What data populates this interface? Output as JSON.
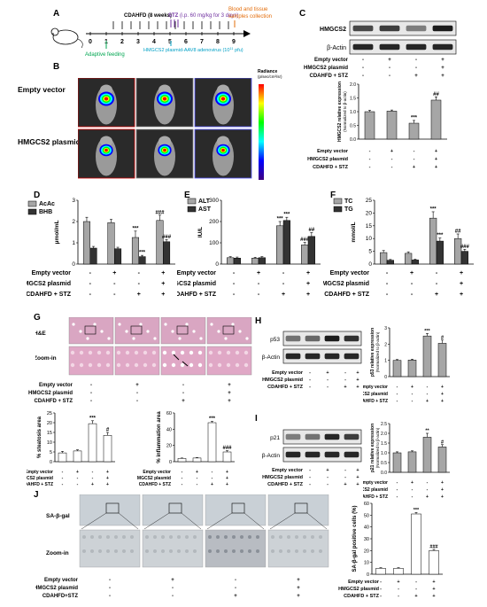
{
  "panels": {
    "A": "A",
    "B": "B",
    "C": "C",
    "D": "D",
    "E": "E",
    "F": "F",
    "G": "G",
    "H": "H",
    "I": "I",
    "J": "J"
  },
  "timeline": {
    "ticks": [
      "0",
      "1",
      "2",
      "3",
      "4",
      "5",
      "6",
      "7",
      "8",
      "9"
    ],
    "cdahfd": "CDAHFD (8 weeks)",
    "stz": "STZ",
    "stz_dose": "(i.p. 60 mg/kg for 3 days)",
    "blood_1": "Blood and tissue",
    "blood_2": "samples collection",
    "adaptive": "Adaptive feeding",
    "aav": "HMGCS2 plasmid-AAV8 adenovirus (10",
    "aav_exp": "11",
    "aav_unit": " pfu)"
  },
  "imaging": {
    "row1": "Empty vector",
    "row2": "HMGCS2 plasmid",
    "cb_title": "Radiance",
    "cb_unit": "(p/sec/cm²/sr)"
  },
  "conditions": {
    "ev": "Empty vector",
    "hp": "HMGCS2 plasmid",
    "cd": "CDAHFD + STZ",
    "cd_j": "CDAHFD+STZ",
    "ev_signs": [
      "-",
      "+",
      "-",
      "+"
    ],
    "hp_signs": [
      "-",
      "-",
      "-",
      "+"
    ],
    "cd_signs": [
      "-",
      "-",
      "+",
      "+"
    ]
  },
  "blots": {
    "hmgcs2": "HMGCS2",
    "actin": "β-Actin",
    "p53": "p53",
    "p21": "p21"
  },
  "histo": {
    "he": "H&E",
    "zoom": "Zoom-in",
    "sa": "SA-β-gal"
  },
  "sig": {
    "t3": "***",
    "t2": "**",
    "h1": "#",
    "h2": "##",
    "h3": "###"
  },
  "chart_data": [
    {
      "panel": "C",
      "type": "bar",
      "ylabel": "HMGCS2 relative expression",
      "ylabel2": "(Normalized to β-actin)",
      "ylim": [
        0,
        2.0
      ],
      "yticks": [
        "0.0",
        "0.5",
        "1.0",
        "1.5",
        "2.0"
      ],
      "ytick_values": [
        0,
        0.5,
        1.0,
        1.5,
        2.0
      ],
      "values": [
        1.0,
        1.02,
        0.58,
        1.42
      ],
      "errors": [
        0.05,
        0.04,
        0.1,
        0.12
      ],
      "marks": [
        "",
        "",
        "***",
        "##"
      ]
    },
    {
      "panel": "D",
      "type": "bar",
      "ylabel": "μmol/mL",
      "ylim": [
        0,
        3
      ],
      "yticks": [
        "0",
        "1",
        "2",
        "3"
      ],
      "ytick_values": [
        0,
        1,
        2,
        3
      ],
      "series": [
        {
          "name": "AcAc",
          "values": [
            2.0,
            1.95,
            1.25,
            2.05
          ],
          "errors": [
            0.2,
            0.15,
            0.3,
            0.25
          ],
          "marks": [
            "",
            "",
            "***",
            "###"
          ]
        },
        {
          "name": "BHB",
          "values": [
            0.75,
            0.72,
            0.35,
            1.05
          ],
          "errors": [
            0.08,
            0.07,
            0.06,
            0.1
          ],
          "marks": [
            "",
            "",
            "***",
            "###"
          ]
        }
      ]
    },
    {
      "panel": "E",
      "type": "bar",
      "ylabel": "IU/L",
      "ylim": [
        0,
        300
      ],
      "yticks": [
        "0",
        "100",
        "200",
        "300"
      ],
      "ytick_values": [
        0,
        100,
        200,
        300
      ],
      "series": [
        {
          "name": "ALT",
          "values": [
            30,
            28,
            180,
            90
          ],
          "errors": [
            5,
            4,
            20,
            12
          ],
          "marks": [
            "",
            "",
            "***",
            "###"
          ]
        },
        {
          "name": "AST",
          "values": [
            28,
            30,
            205,
            130
          ],
          "errors": [
            5,
            5,
            15,
            18
          ],
          "marks": [
            "",
            "",
            "***",
            "##"
          ]
        }
      ]
    },
    {
      "panel": "F",
      "type": "bar",
      "ylabel": "mmol/L",
      "ylim": [
        0,
        25
      ],
      "yticks": [
        "0",
        "5",
        "10",
        "15",
        "20",
        "25"
      ],
      "ytick_values": [
        0,
        5,
        10,
        15,
        20,
        25
      ],
      "series": [
        {
          "name": "TC",
          "values": [
            4.5,
            4.2,
            18,
            10
          ],
          "errors": [
            0.8,
            0.6,
            2.5,
            1.8
          ],
          "marks": [
            "",
            "",
            "***",
            "##"
          ]
        },
        {
          "name": "TG",
          "values": [
            1.5,
            1.6,
            9,
            5
          ],
          "errors": [
            0.3,
            0.3,
            1.2,
            0.8
          ],
          "marks": [
            "",
            "",
            "***",
            "###"
          ]
        }
      ]
    },
    {
      "panel": "G1",
      "type": "bar",
      "ylabel": "% steatosis area",
      "ylim": [
        0,
        25
      ],
      "yticks": [
        "0",
        "5",
        "10",
        "15",
        "20",
        "25"
      ],
      "ytick_values": [
        0,
        5,
        10,
        15,
        20,
        25
      ],
      "values": [
        4.5,
        5.5,
        19.5,
        13.5
      ],
      "errors": [
        0.8,
        0.6,
        1.5,
        1.5
      ],
      "marks": [
        "",
        "",
        "***",
        "#"
      ]
    },
    {
      "panel": "G2",
      "type": "bar",
      "ylabel": "% inflammation area",
      "ylim": [
        0,
        60
      ],
      "yticks": [
        "0",
        "20",
        "40",
        "60"
      ],
      "ytick_values": [
        0,
        20,
        40,
        60
      ],
      "values": [
        4,
        4.5,
        48,
        12
      ],
      "errors": [
        0.5,
        0.5,
        1.5,
        1.5
      ],
      "marks": [
        "",
        "",
        "***",
        "###"
      ]
    },
    {
      "panel": "H",
      "type": "bar",
      "ylabel": "p53 relative expression",
      "ylabel2": "(Normalized to β-actin)",
      "ylim": [
        0,
        3
      ],
      "yticks": [
        "0",
        "1",
        "2",
        "3"
      ],
      "ytick_values": [
        0,
        1,
        2,
        3
      ],
      "values": [
        1.0,
        1.02,
        2.5,
        2.05
      ],
      "errors": [
        0.05,
        0.05,
        0.15,
        0.2
      ],
      "marks": [
        "",
        "",
        "***",
        "#"
      ]
    },
    {
      "panel": "I",
      "type": "bar",
      "ylabel": "p21 relative expression",
      "ylabel2": "(Normalized to β-actin)",
      "ylim": [
        0,
        2.5
      ],
      "yticks": [
        "0.0",
        "0.5",
        "1.0",
        "1.5",
        "2.0",
        "2.5"
      ],
      "ytick_values": [
        0,
        0.5,
        1.0,
        1.5,
        2.0,
        2.5
      ],
      "values": [
        1.0,
        1.05,
        1.8,
        1.3
      ],
      "errors": [
        0.05,
        0.05,
        0.2,
        0.12
      ],
      "marks": [
        "",
        "",
        "**",
        "#"
      ]
    },
    {
      "panel": "J",
      "type": "bar",
      "ylabel": "SA-β-gal positive cells (%)",
      "ylim": [
        0,
        60
      ],
      "yticks": [
        "0",
        "10",
        "20",
        "30",
        "40",
        "50",
        "60"
      ],
      "ytick_values": [
        0,
        10,
        20,
        30,
        40,
        50,
        60
      ],
      "values": [
        5,
        5,
        51,
        20
      ],
      "errors": [
        0.5,
        0.5,
        1.2,
        1.0
      ],
      "marks": [
        "",
        "",
        "***",
        "###"
      ]
    }
  ]
}
